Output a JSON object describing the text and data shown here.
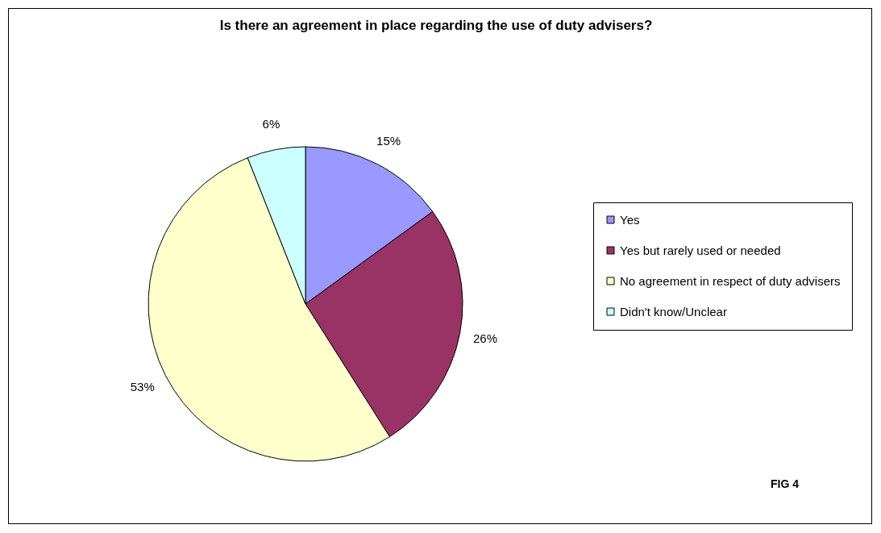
{
  "chart_data": {
    "type": "pie",
    "title": "Is there an agreement in place regarding the use of duty advisers?",
    "categories": [
      "Yes",
      "Yes but rarely used or needed",
      "No agreement in respect of duty advisers",
      "Didn't know/Unclear"
    ],
    "values": [
      15,
      26,
      53,
      6
    ],
    "value_labels": [
      "15%",
      "26%",
      "53%",
      "6%"
    ],
    "colors": [
      "#9999ff",
      "#993366",
      "#ffffcc",
      "#ccffff"
    ],
    "legend": "right",
    "annotations": [
      "FIG 4"
    ]
  }
}
